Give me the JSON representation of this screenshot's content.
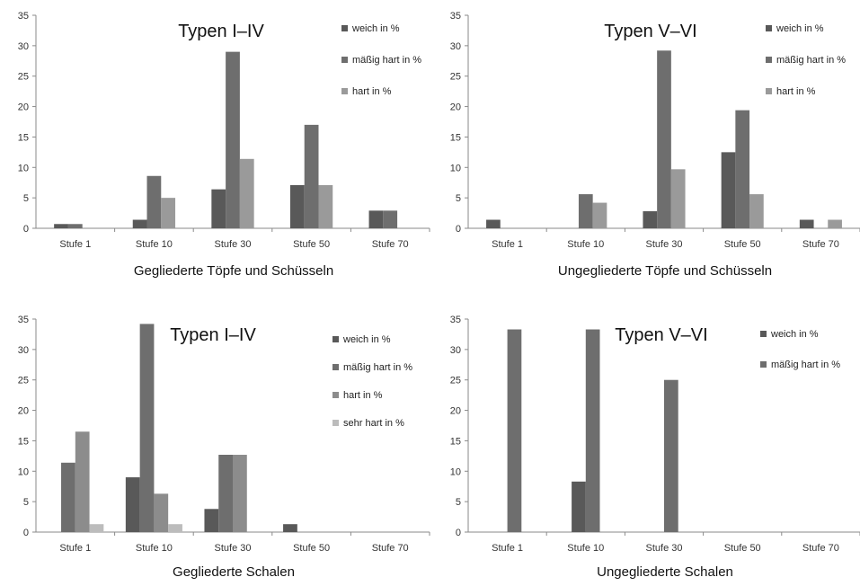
{
  "chart_data": [
    {
      "type": "bar",
      "title": "Typen I–IV",
      "subtitle": "Gegliederte Töpfe und Schüsseln",
      "categories": [
        "Stufe 1",
        "Stufe 10",
        "Stufe 30",
        "Stufe 50",
        "Stufe 70"
      ],
      "series": [
        {
          "name": "weich in %",
          "color": "#595959",
          "values": [
            0.7,
            1.4,
            6.4,
            7.1,
            2.9
          ]
        },
        {
          "name": "mäßig hart in %",
          "color": "#6e6e6e",
          "values": [
            0.7,
            8.6,
            29.0,
            17.0,
            2.9
          ]
        },
        {
          "name": "hart in %",
          "color": "#9a9a9a",
          "values": [
            0,
            5.0,
            11.4,
            7.1,
            0
          ]
        }
      ],
      "ylim": [
        0,
        35
      ],
      "yticks": [
        0,
        5,
        10,
        15,
        20,
        25,
        30,
        35
      ],
      "legend": "top-right",
      "grid": false
    },
    {
      "type": "bar",
      "title": "Typen V–VI",
      "subtitle": "Ungegliederte Töpfe und Schüsseln",
      "categories": [
        "Stufe 1",
        "Stufe 10",
        "Stufe 30",
        "Stufe 50",
        "Stufe 70"
      ],
      "series": [
        {
          "name": "weich in %",
          "color": "#595959",
          "values": [
            1.4,
            0,
            2.8,
            12.5,
            1.4
          ]
        },
        {
          "name": "mäßig hart in %",
          "color": "#6e6e6e",
          "values": [
            0,
            5.6,
            29.2,
            19.4,
            0
          ]
        },
        {
          "name": "hart in %",
          "color": "#9a9a9a",
          "values": [
            0,
            4.2,
            9.7,
            5.6,
            1.4
          ]
        }
      ],
      "ylim": [
        0,
        35
      ],
      "yticks": [
        0,
        5,
        10,
        15,
        20,
        25,
        30,
        35
      ],
      "legend": "top-right",
      "grid": false
    },
    {
      "type": "bar",
      "title": "Typen I–IV",
      "subtitle": "Gegliederte Schalen",
      "categories": [
        "Stufe 1",
        "Stufe 10",
        "Stufe 30",
        "Stufe 50",
        "Stufe 70"
      ],
      "series": [
        {
          "name": "weich in %",
          "color": "#595959",
          "values": [
            0,
            9.0,
            3.8,
            1.3,
            0
          ]
        },
        {
          "name": "mäßig hart in %",
          "color": "#6e6e6e",
          "values": [
            11.4,
            34.2,
            12.7,
            0,
            0
          ]
        },
        {
          "name": "hart in %",
          "color": "#8c8c8c",
          "values": [
            16.5,
            6.3,
            12.7,
            0,
            0
          ]
        },
        {
          "name": "sehr hart in %",
          "color": "#bcbcbc",
          "values": [
            1.3,
            1.3,
            0,
            0,
            0
          ]
        }
      ],
      "ylim": [
        0,
        35
      ],
      "yticks": [
        0,
        5,
        10,
        15,
        20,
        25,
        30,
        35
      ],
      "legend": "top-right",
      "grid": false
    },
    {
      "type": "bar",
      "title": "Typen V–VI",
      "subtitle": "Ungegliederte Schalen",
      "categories": [
        "Stufe 1",
        "Stufe 10",
        "Stufe 30",
        "Stufe 50",
        "Stufe 70"
      ],
      "series": [
        {
          "name": "weich in %",
          "color": "#595959",
          "values": [
            0,
            8.3,
            0,
            0,
            0
          ]
        },
        {
          "name": "mäßig hart in %",
          "color": "#6e6e6e",
          "values": [
            33.3,
            33.3,
            25.0,
            0,
            0
          ]
        }
      ],
      "ylim": [
        0,
        35
      ],
      "yticks": [
        0,
        5,
        10,
        15,
        20,
        25,
        30,
        35
      ],
      "legend": "top-right",
      "grid": false
    }
  ]
}
